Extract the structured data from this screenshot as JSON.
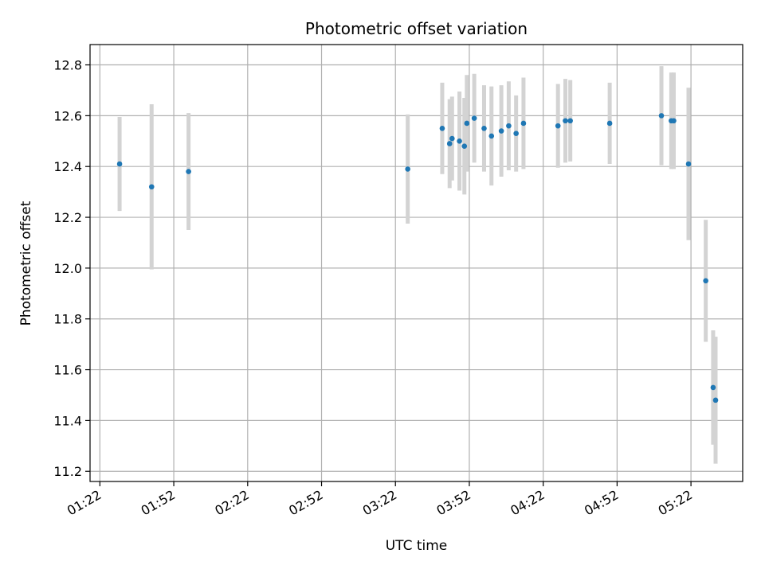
{
  "chart_data": {
    "type": "scatter",
    "title": "Photometric offset variation",
    "xlabel": "UTC time",
    "ylabel": "Photometric offset",
    "x_tick_labels": [
      "01:22",
      "01:52",
      "02:22",
      "02:52",
      "03:22",
      "03:52",
      "04:22",
      "04:52",
      "05:22"
    ],
    "x_ticks_minutes": [
      82,
      112,
      142,
      172,
      202,
      232,
      262,
      292,
      322
    ],
    "xlim_minutes": [
      78,
      343
    ],
    "y_ticks": [
      11.2,
      11.4,
      11.6,
      11.8,
      12.0,
      12.2,
      12.4,
      12.6,
      12.8
    ],
    "y_tick_labels": [
      "11.2",
      "11.4",
      "11.6",
      "11.8",
      "12.0",
      "12.2",
      "12.4",
      "12.6",
      "12.8"
    ],
    "ylim": [
      11.16,
      12.88
    ],
    "grid": true,
    "colors": {
      "point": "#1f77b4",
      "errorbar": "#d3d3d3",
      "grid": "#b0b0b0"
    },
    "series": [
      {
        "points": [
          {
            "x": "01:30",
            "y": 12.41,
            "err": 0.185
          },
          {
            "x": "01:43",
            "y": 12.32,
            "err": 0.325
          },
          {
            "x": "01:58",
            "y": 12.38,
            "err": 0.23
          },
          {
            "x": "03:27",
            "y": 12.39,
            "err": 0.215
          },
          {
            "x": "03:41",
            "y": 12.55,
            "err": 0.18
          },
          {
            "x": "03:44",
            "y": 12.49,
            "err": 0.175
          },
          {
            "x": "03:45",
            "y": 12.51,
            "err": 0.165
          },
          {
            "x": "03:48",
            "y": 12.5,
            "err": 0.195
          },
          {
            "x": "03:50",
            "y": 12.48,
            "err": 0.19
          },
          {
            "x": "03:51",
            "y": 12.57,
            "err": 0.19
          },
          {
            "x": "03:54",
            "y": 12.59,
            "err": 0.175
          },
          {
            "x": "03:58",
            "y": 12.55,
            "err": 0.17
          },
          {
            "x": "04:01",
            "y": 12.52,
            "err": 0.195
          },
          {
            "x": "04:05",
            "y": 12.54,
            "err": 0.18
          },
          {
            "x": "04:08",
            "y": 12.56,
            "err": 0.175
          },
          {
            "x": "04:11",
            "y": 12.53,
            "err": 0.15
          },
          {
            "x": "04:14",
            "y": 12.57,
            "err": 0.18
          },
          {
            "x": "04:28",
            "y": 12.56,
            "err": 0.165
          },
          {
            "x": "04:31",
            "y": 12.58,
            "err": 0.165
          },
          {
            "x": "04:33",
            "y": 12.58,
            "err": 0.16
          },
          {
            "x": "04:49",
            "y": 12.57,
            "err": 0.16
          },
          {
            "x": "05:10",
            "y": 12.6,
            "err": 0.195
          },
          {
            "x": "05:14",
            "y": 12.58,
            "err": 0.19
          },
          {
            "x": "05:15",
            "y": 12.58,
            "err": 0.19
          },
          {
            "x": "05:21",
            "y": 12.41,
            "err": 0.3
          },
          {
            "x": "05:28",
            "y": 11.95,
            "err": 0.24
          },
          {
            "x": "05:31",
            "y": 11.53,
            "err": 0.225
          },
          {
            "x": "05:32",
            "y": 11.48,
            "err": 0.25
          }
        ]
      }
    ]
  }
}
